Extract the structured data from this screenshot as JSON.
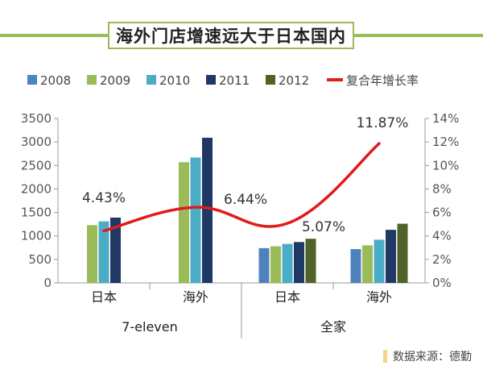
{
  "title": "海外门店增速远大于日本国内",
  "source": "数据来源：德勤",
  "colors": {
    "2008": "#4f81bd",
    "2009": "#9bbb59",
    "2010": "#4bacc6",
    "2011": "#1f3864",
    "2012": "#4f6228",
    "line": "#e11b1b",
    "frame": "#9bbb59"
  },
  "chart_data": {
    "type": "bar",
    "title": "海外门店增速远大于日本国内",
    "categories": [
      "日本",
      "海外",
      "日本",
      "海外"
    ],
    "groups": [
      {
        "label": "7-eleven",
        "categories": [
          "日本",
          "海外"
        ]
      },
      {
        "label": "全家",
        "categories": [
          "日本",
          "海外"
        ]
      }
    ],
    "series": [
      {
        "name": "2008",
        "values": [
          null,
          null,
          740,
          720
        ]
      },
      {
        "name": "2009",
        "values": [
          1230,
          2570,
          780,
          800
        ]
      },
      {
        "name": "2010",
        "values": [
          1310,
          2670,
          830,
          920
        ]
      },
      {
        "name": "2011",
        "values": [
          1390,
          3090,
          870,
          1130
        ]
      },
      {
        "name": "2012",
        "values": [
          null,
          null,
          940,
          1260
        ]
      }
    ],
    "line_series": {
      "name": "复合年增长率",
      "values": [
        4.43,
        6.44,
        5.07,
        11.87
      ],
      "labels": [
        "4.43%",
        "6.44%",
        "5.07%",
        "11.87%"
      ],
      "axis": "right"
    },
    "y_left": {
      "min": 0,
      "max": 3500,
      "ticks": [
        0,
        500,
        1000,
        1500,
        2000,
        2500,
        3000,
        3500
      ]
    },
    "y_right": {
      "min": 0,
      "max": 14,
      "ticks": [
        "0%",
        "2%",
        "4%",
        "6%",
        "8%",
        "10%",
        "12%",
        "14%"
      ]
    },
    "legend_position": "top",
    "grid": false
  }
}
